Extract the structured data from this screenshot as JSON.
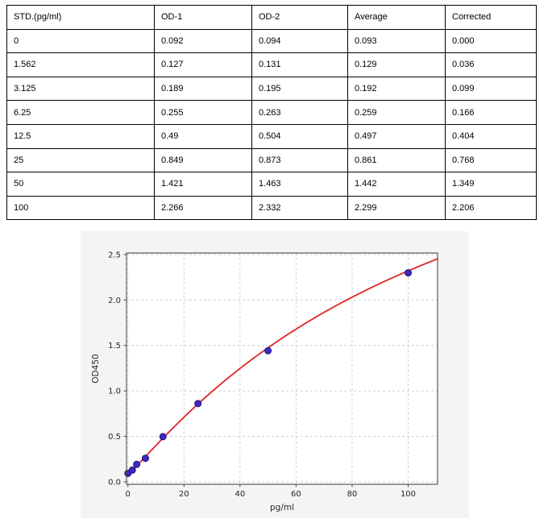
{
  "table": {
    "headers": [
      "STD.(pg/ml)",
      "OD-1",
      "OD-2",
      "Average",
      "Corrected"
    ],
    "rows": [
      [
        "0",
        "0.092",
        "0.094",
        "0.093",
        "0.000"
      ],
      [
        "1.562",
        "0.127",
        "0.131",
        "0.129",
        "0.036"
      ],
      [
        "3.125",
        "0.189",
        "0.195",
        "0.192",
        "0.099"
      ],
      [
        "6.25",
        "0.255",
        "0.263",
        "0.259",
        "0.166"
      ],
      [
        "12.5",
        "0.49",
        "0.504",
        "0.497",
        "0.404"
      ],
      [
        "25",
        "0.849",
        "0.873",
        "0.861",
        "0.768"
      ],
      [
        "50",
        "1.421",
        "1.463",
        "1.442",
        "1.349"
      ],
      [
        "100",
        "2.266",
        "2.332",
        "2.299",
        "2.206"
      ]
    ]
  },
  "chart_data": {
    "type": "scatter",
    "title": "",
    "xlabel": "pg/ml",
    "ylabel": "OD450",
    "x": [
      0,
      1.562,
      3.125,
      6.25,
      12.5,
      25,
      50,
      100
    ],
    "y": [
      0.093,
      0.129,
      0.192,
      0.259,
      0.497,
      0.861,
      1.442,
      2.299
    ],
    "xticks": [
      0,
      20,
      40,
      60,
      80,
      100
    ],
    "yticks": [
      "0.0",
      "0.5",
      "1.0",
      "1.5",
      "2.0",
      "2.5"
    ],
    "xlim": [
      -0.5,
      110.5
    ],
    "ylim": [
      -0.027,
      2.517
    ],
    "grid": "dashed",
    "legend": "none",
    "fit": {
      "type": "4PL",
      "a": 0.08,
      "b": 1.08,
      "c": 118,
      "d": 5.0
    },
    "colors": {
      "panel_bg": "#f4f4f4",
      "plot_bg": "#ffffff",
      "grid": "#c9c9c9",
      "axis": "#4a4a4a",
      "curve": "#e02424",
      "marker_fill": "#3a28c4",
      "marker_edge": "#27156f"
    }
  }
}
